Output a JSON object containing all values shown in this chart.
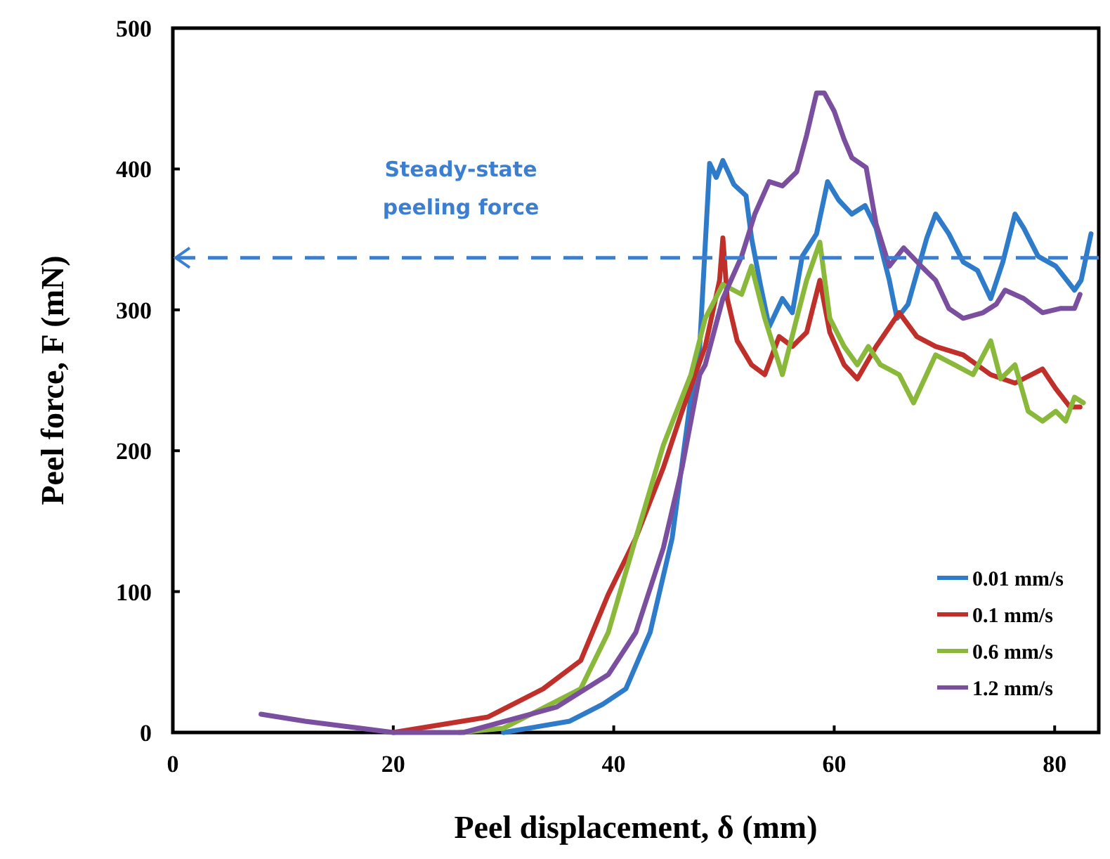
{
  "chart_data": {
    "type": "line",
    "xlabel": "Peel displacement, δ (mm)",
    "ylabel": "Peel force, F  (mN)",
    "xlim": [
      0,
      84
    ],
    "ylim": [
      0,
      500
    ],
    "xticks": [
      0,
      20,
      40,
      60,
      80
    ],
    "yticks": [
      0,
      100,
      200,
      300,
      400,
      500
    ],
    "grid": false,
    "legend": "bottom right",
    "marker": "none",
    "line_style": "solid",
    "ref_lines": [
      {
        "axis": "y",
        "value": 337,
        "label": "Steady-state peeling force",
        "color": "#3c7fd1",
        "line_style": "dashed"
      }
    ],
    "series": [
      {
        "name": "0.01 mm/s",
        "color": "#2e7bc9",
        "x": [
          30,
          36,
          39,
          41.1,
          43.3,
          45.3,
          47,
          47.8,
          48.7,
          49.3,
          49.9,
          50.9,
          52.0,
          52.5,
          53.3,
          54.1,
          55.3,
          56.2,
          57.1,
          58.4,
          59.4,
          60.4,
          61.6,
          62.8,
          63.8,
          65.0,
          65.7,
          66.7,
          68.4,
          69.2,
          70.4,
          71.7,
          73.0,
          74.2,
          75.3,
          76.4,
          77.2,
          78.5,
          80.1,
          81.8,
          82.4,
          83.3
        ],
        "values": [
          0,
          8,
          20,
          31,
          71,
          138,
          238,
          274,
          404,
          394,
          406,
          389,
          381,
          351,
          318,
          288,
          308,
          298,
          338,
          354,
          391,
          378,
          368,
          374,
          358,
          321,
          294,
          304,
          351,
          368,
          354,
          334,
          328,
          308,
          334,
          368,
          358,
          338,
          331,
          314,
          321,
          354
        ]
      },
      {
        "name": "0.1 mm/s",
        "color": "#c0302b",
        "x": [
          20,
          28.6,
          33.6,
          37,
          39.5,
          42,
          44.5,
          46.2,
          48.3,
          49.6,
          49.9,
          50.3,
          51.2,
          52.5,
          53.7,
          55,
          56.2,
          57.5,
          58.7,
          59.6,
          60.9,
          62.1,
          63.8,
          65.9,
          67.5,
          69.2,
          71.7,
          74.2,
          76.4,
          78.9,
          80.1,
          81.4,
          82.3
        ],
        "values": [
          0,
          11,
          31,
          51,
          98,
          138,
          188,
          228,
          274,
          321,
          351,
          308,
          278,
          261,
          254,
          281,
          274,
          284,
          321,
          284,
          261,
          251,
          274,
          298,
          281,
          274,
          268,
          254,
          248,
          258,
          244,
          231,
          231
        ]
      },
      {
        "name": "0.6 mm/s",
        "color": "#8ab83a",
        "x": [
          26,
          30,
          37,
          39.5,
          42,
          44.5,
          47,
          48.3,
          49.9,
          51.6,
          52.5,
          53.7,
          55.3,
          56.6,
          57.5,
          58.7,
          59.6,
          60.9,
          62.1,
          63.1,
          64.2,
          65.9,
          67.2,
          69.2,
          70.9,
          72.6,
          74.2,
          75.1,
          76.4,
          77.6,
          78.9,
          80.1,
          81,
          81.8,
          82.6
        ],
        "values": [
          0,
          3,
          31,
          71,
          138,
          204,
          254,
          294,
          318,
          311,
          331,
          294,
          254,
          294,
          321,
          348,
          294,
          274,
          261,
          274,
          261,
          254,
          234,
          268,
          261,
          254,
          278,
          251,
          261,
          228,
          221,
          228,
          221,
          238,
          234
        ]
      },
      {
        "name": "1.2 mm/s",
        "color": "#7a4fa0",
        "x": [
          8,
          12,
          16,
          20,
          26.4,
          34.8,
          39.5,
          42,
          44.5,
          46.2,
          47.8,
          48.3,
          49.9,
          51.6,
          52.8,
          54.1,
          55.3,
          56.6,
          57.5,
          58.4,
          59.1,
          60,
          60.9,
          61.6,
          62.9,
          63.8,
          65,
          66.3,
          67.9,
          69.2,
          70.4,
          71.7,
          73.5,
          74.7,
          75.5,
          77.2,
          78.9,
          80.5,
          81.8,
          82.3
        ],
        "values": [
          13,
          8,
          4,
          0,
          0,
          18,
          41,
          71,
          131,
          188,
          254,
          261,
          308,
          338,
          368,
          391,
          388,
          398,
          424,
          454,
          454,
          441,
          421,
          408,
          401,
          361,
          331,
          344,
          331,
          321,
          301,
          294,
          298,
          304,
          314,
          308,
          298,
          301,
          301,
          311
        ]
      }
    ]
  }
}
